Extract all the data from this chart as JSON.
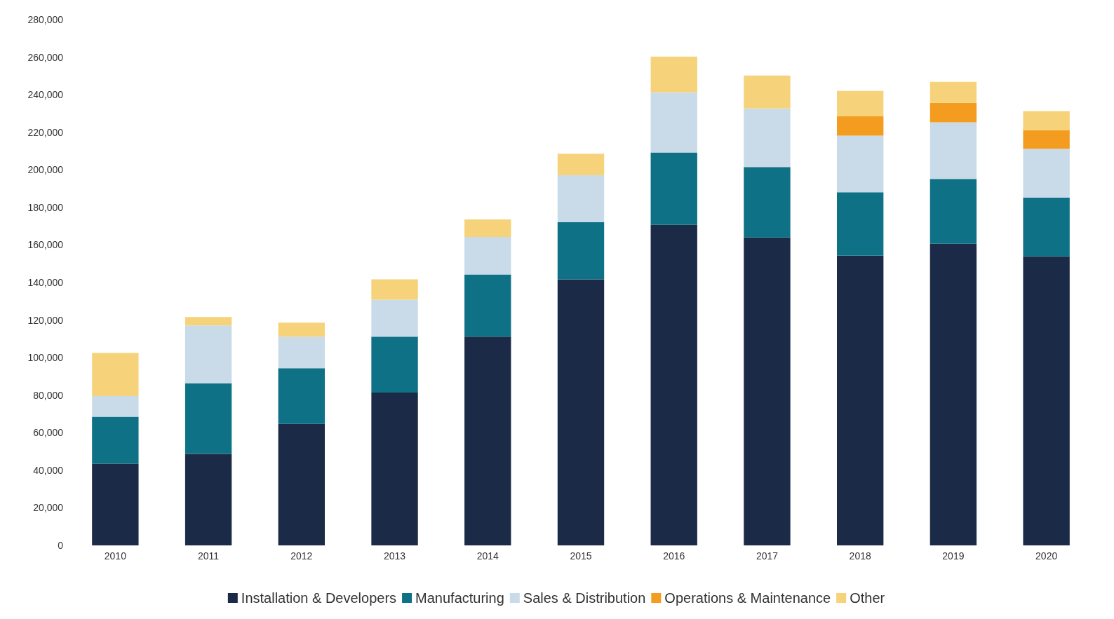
{
  "chart_data": {
    "type": "bar",
    "stacked": true,
    "categories": [
      "2010",
      "2011",
      "2012",
      "2013",
      "2014",
      "2015",
      "2016",
      "2017",
      "2018",
      "2019",
      "2020"
    ],
    "series": [
      {
        "name": "Installation & Developers",
        "color": "#1b2a47",
        "values": [
          43500,
          48700,
          64700,
          81400,
          111200,
          141700,
          170700,
          164000,
          154300,
          160600,
          153900
        ]
      },
      {
        "name": "Manufacturing",
        "color": "#0e7185",
        "values": [
          25000,
          37600,
          29700,
          29800,
          33100,
          30400,
          38600,
          37500,
          33800,
          34600,
          31300
        ]
      },
      {
        "name": "Sales & Distribution",
        "color": "#c9dbe8",
        "values": [
          11000,
          30800,
          16800,
          19700,
          20000,
          25000,
          32000,
          31200,
          30100,
          30100,
          26000
        ]
      },
      {
        "name": "Operations & Maintenance",
        "color": "#f39c1f",
        "values": [
          0,
          0,
          0,
          0,
          0,
          0,
          0,
          0,
          10500,
          10400,
          10000
        ]
      },
      {
        "name": "Other",
        "color": "#f6d37a",
        "values": [
          23000,
          4500,
          7400,
          10800,
          9300,
          11500,
          19000,
          17500,
          13300,
          11200,
          10100
        ]
      }
    ],
    "ylim": [
      0,
      280000
    ],
    "yticks": [
      0,
      {
        "value": 20000,
        "label": "20,000"
      },
      {
        "value": 40000,
        "label": "40,000"
      },
      {
        "value": 60000,
        "label": "60,000"
      },
      {
        "value": 80000,
        "label": "80,000"
      },
      {
        "value": 100000,
        "label": "100,000"
      },
      {
        "value": 120000,
        "label": "120,000"
      },
      {
        "value": 140000,
        "label": "140,000"
      },
      {
        "value": 160000,
        "label": "160,000"
      },
      {
        "value": 180000,
        "label": "180,000"
      },
      {
        "value": 200000,
        "label": "200,000"
      },
      {
        "value": 220000,
        "label": "220,000"
      },
      {
        "value": 240000,
        "label": "240,000"
      },
      {
        "value": 260000,
        "label": "260,000"
      },
      {
        "value": 280000,
        "label": "280,000"
      }
    ],
    "grid": false,
    "legend": "bottom"
  }
}
